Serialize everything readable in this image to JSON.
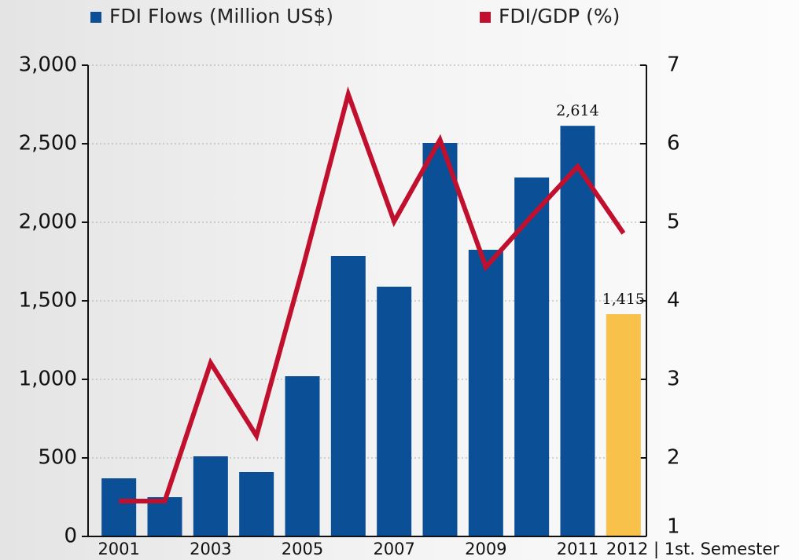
{
  "chart_data": {
    "type": "bar_line",
    "categories": [
      "2001",
      null,
      "2003",
      null,
      "2005",
      null,
      "2007",
      null,
      "2009",
      null,
      "2011",
      "2012 | 1st. Semester"
    ],
    "series": [
      {
        "name": "FDI Flows (Million US$)",
        "color": "#0b4f97",
        "type": "bar",
        "values": [
          370,
          250,
          510,
          410,
          1020,
          1785,
          1590,
          2505,
          1825,
          2285,
          2614,
          1415
        ],
        "bar_colors": [
          "#0b4f97",
          "#0b4f97",
          "#0b4f97",
          "#0b4f97",
          "#0b4f97",
          "#0b4f97",
          "#0b4f97",
          "#0b4f97",
          "#0b4f97",
          "#0b4f97",
          "#0b4f97",
          "#f8c14a"
        ],
        "value_labels": [
          null,
          null,
          null,
          null,
          null,
          null,
          null,
          null,
          null,
          null,
          "2,614",
          "1,415"
        ]
      },
      {
        "name": "FDI/GDP (%)",
        "color": "#c0102e",
        "type": "line",
        "axis": "y2",
        "values": [
          1.45,
          1.45,
          3.21,
          2.28,
          4.4,
          6.63,
          5.01,
          6.05,
          4.43,
          5.08,
          5.71,
          4.86
        ]
      }
    ],
    "ylim": [
      0,
      3000
    ],
    "yticks": [
      0,
      500,
      {
        "value": 1000,
        "label": "1,000"
      },
      {
        "value": 1500,
        "label": "1,500"
      },
      {
        "value": 2000,
        "label": "2,000"
      },
      {
        "value": 2500,
        "label": "2,500"
      },
      {
        "value": 3000,
        "label": "3,000"
      }
    ],
    "y2lim": [
      1,
      7
    ],
    "y2ticks": [
      1,
      2,
      3,
      4,
      5,
      6,
      7
    ],
    "grid": true,
    "legend": "top"
  }
}
